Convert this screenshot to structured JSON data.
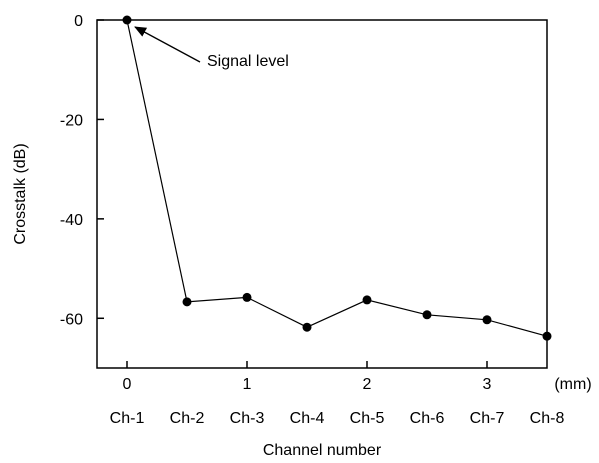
{
  "chart_data": {
    "type": "line",
    "ylabel": "Crosstalk (dB)",
    "xlabel": "Channel number",
    "x_unit": "(mm)",
    "xlim": [
      -0.25,
      3.5
    ],
    "ylim": [
      -70,
      0
    ],
    "x_ticks": [
      {
        "value": 0,
        "label": "0"
      },
      {
        "value": 1,
        "label": "1"
      },
      {
        "value": 2,
        "label": "2"
      },
      {
        "value": 3,
        "label": "3"
      }
    ],
    "y_ticks": [
      {
        "value": 0,
        "label": "0"
      },
      {
        "value": -20,
        "label": "-20"
      },
      {
        "value": -40,
        "label": "-40"
      },
      {
        "value": -60,
        "label": "-60"
      }
    ],
    "channel_labels": [
      "Ch-1",
      "Ch-2",
      "Ch-3",
      "Ch-4",
      "Ch-5",
      "Ch-6",
      "Ch-7",
      "Ch-8"
    ],
    "series": [
      {
        "x": [
          0,
          0.5,
          1,
          1.5,
          2,
          2.5,
          3,
          3.5
        ],
        "values": [
          0,
          -56.7,
          -55.8,
          -61.8,
          -56.3,
          -59.3,
          -60.3,
          -63.6
        ]
      }
    ],
    "annotations": [
      {
        "text": "Signal level",
        "target_x": 0,
        "target_y": 0
      }
    ],
    "grid": false
  }
}
